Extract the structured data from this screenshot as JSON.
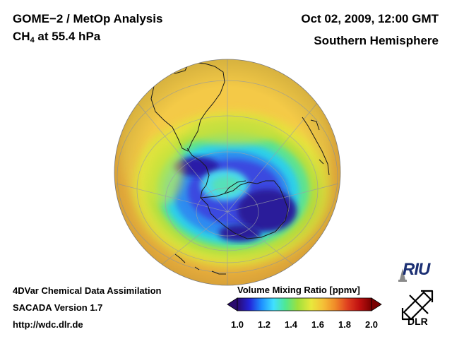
{
  "header": {
    "title": "GOME−2 / MetOp Analysis",
    "species": "CH",
    "species_sub": "4",
    "species_rest": " at 55.4 hPa",
    "datetime": "Oct 02, 2009, 12:00 GMT",
    "hemisphere": "Southern Hemisphere"
  },
  "footer": {
    "line1": "4DVar Chemical Data Assimilation",
    "line2": "SACADA Version 1.7",
    "line3": "http://wdc.dlr.de"
  },
  "colorbar": {
    "title": "Volume Mixing Ratio [ppmv]",
    "min": 1.0,
    "max": 2.0,
    "ticks": [
      "1.0",
      "1.2",
      "1.4",
      "1.6",
      "1.8",
      "2.0"
    ],
    "colors": [
      "#2a0a6e",
      "#2323d8",
      "#1e90ff",
      "#40e0ff",
      "#50e890",
      "#9ee03c",
      "#e8e83c",
      "#f5c037",
      "#f08a28",
      "#e04020",
      "#c01010",
      "#7a0000"
    ]
  },
  "logos": {
    "riu": "RIU",
    "dlr": "DLR"
  },
  "map": {
    "background_value_ppmv": 1.72,
    "ring_value_ppmv": 1.5,
    "vortex_edge_value_ppmv": 1.3,
    "vortex_core_value_ppmv": 1.05
  }
}
